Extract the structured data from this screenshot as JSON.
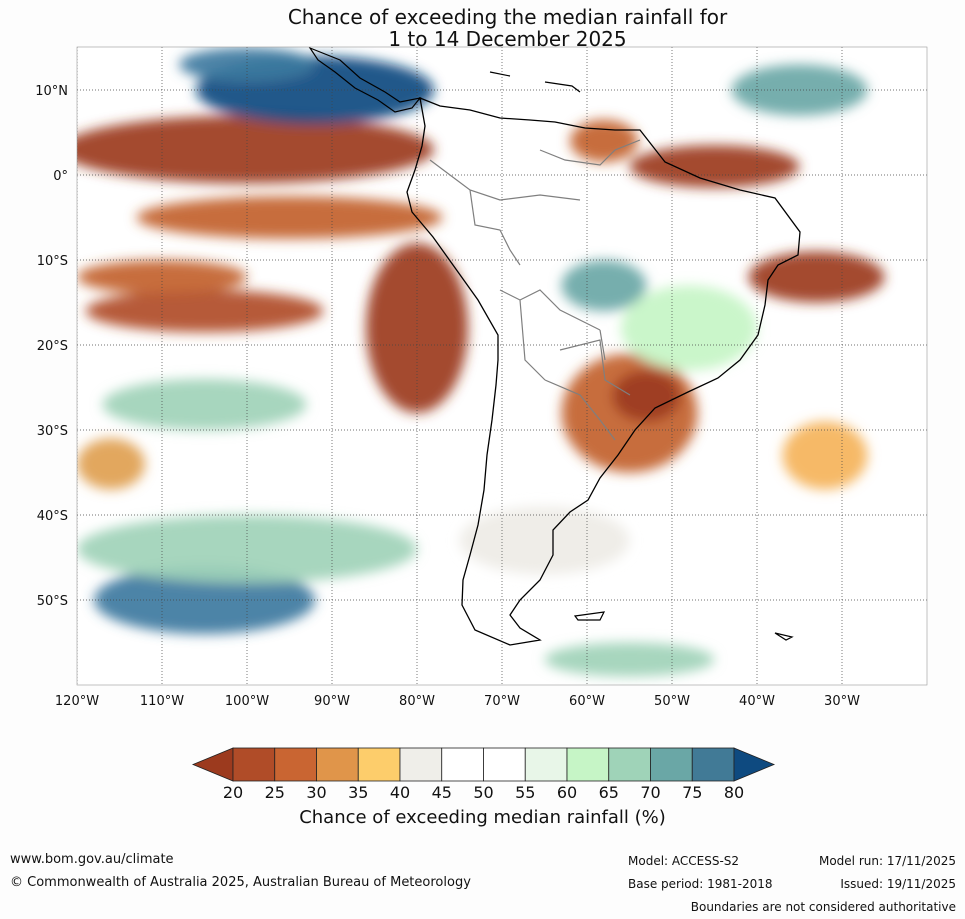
{
  "title": {
    "line1": "Chance of exceeding the median rainfall for",
    "line2": "1 to 14 December 2025"
  },
  "map": {
    "lat_labels": [
      {
        "lat": 10,
        "label": "10°N"
      },
      {
        "lat": 0,
        "label": "0°"
      },
      {
        "lat": -10,
        "label": "10°S"
      },
      {
        "lat": -20,
        "label": "20°S"
      },
      {
        "lat": -30,
        "label": "30°S"
      },
      {
        "lat": -40,
        "label": "40°S"
      },
      {
        "lat": -50,
        "label": "50°S"
      }
    ],
    "lon_labels": [
      {
        "lon": -120,
        "label": "120°W"
      },
      {
        "lon": -110,
        "label": "110°W"
      },
      {
        "lon": -100,
        "label": "100°W"
      },
      {
        "lon": -90,
        "label": "90°W"
      },
      {
        "lon": -80,
        "label": "80°W"
      },
      {
        "lon": -70,
        "label": "70°W"
      },
      {
        "lon": -60,
        "label": "60°W"
      },
      {
        "lon": -50,
        "label": "50°W"
      },
      {
        "lon": -40,
        "label": "40°W"
      },
      {
        "lon": -30,
        "label": "30°W"
      }
    ],
    "regions": [
      {
        "name": "dry-eastern-pacific-equatorial",
        "lon": -100,
        "lat": 3,
        "rx": 22,
        "ry": 4,
        "color": "#9c3a1e"
      },
      {
        "name": "dry-pacific-band-south",
        "lon": -95,
        "lat": -5,
        "rx": 18,
        "ry": 2.5,
        "color": "#c2622e"
      },
      {
        "name": "dry-peru-coast",
        "lon": -80,
        "lat": -18,
        "rx": 6,
        "ry": 10,
        "color": "#9c3a1e"
      },
      {
        "name": "dry-pacific-16s",
        "lon": -105,
        "lat": -16,
        "rx": 14,
        "ry": 2.5,
        "color": "#b04c28"
      },
      {
        "name": "dry-pacific-12s",
        "lon": -110,
        "lat": -12,
        "rx": 10,
        "ry": 2,
        "color": "#c2622e"
      },
      {
        "name": "dry-southern-brazil",
        "lon": -55,
        "lat": -28,
        "rx": 8,
        "ry": 7,
        "color": "#c2622e"
      },
      {
        "name": "dry-southern-brazil-core",
        "lon": -53,
        "lat": -26,
        "rx": 4,
        "ry": 3,
        "color": "#9c3a1e"
      },
      {
        "name": "dry-atlantic-equatorial",
        "lon": -45,
        "lat": 1,
        "rx": 10,
        "ry": 2.5,
        "color": "#9c3a1e"
      },
      {
        "name": "dry-atlantic-12s",
        "lon": -33,
        "lat": -12,
        "rx": 8,
        "ry": 3,
        "color": "#9c3a1e"
      },
      {
        "name": "dry-atlantic-30s",
        "lon": -32,
        "lat": -33,
        "rx": 5,
        "ry": 4,
        "color": "#f5b35a"
      },
      {
        "name": "dry-pacific-32s",
        "lon": -116,
        "lat": -34,
        "rx": 4,
        "ry": 3,
        "color": "#e0a050"
      },
      {
        "name": "dry-north-colombia",
        "lon": -58,
        "lat": 4,
        "rx": 4,
        "ry": 2.5,
        "color": "#c2622e"
      },
      {
        "name": "wet-central-america",
        "lon": -92,
        "lat": 10,
        "rx": 14,
        "ry": 4,
        "color": "#0e4a80"
      },
      {
        "name": "wet-pacific-12n",
        "lon": -100,
        "lat": 13,
        "rx": 8,
        "ry": 2,
        "color": "#3d79a0"
      },
      {
        "name": "wet-southern-pacific",
        "lon": -105,
        "lat": -50,
        "rx": 13,
        "ry": 4,
        "color": "#3d79a0"
      },
      {
        "name": "wet-southern-pacific-light",
        "lon": -100,
        "lat": -44,
        "rx": 20,
        "ry": 4,
        "color": "#9fd3b8"
      },
      {
        "name": "wet-amazon-center",
        "lon": -58,
        "lat": -13,
        "rx": 5,
        "ry": 3,
        "color": "#6aa7a6"
      },
      {
        "name": "wet-brazil-interior",
        "lon": -48,
        "lat": -18,
        "rx": 8,
        "ry": 5,
        "color": "#c6f5c6"
      },
      {
        "name": "wet-atlantic-north",
        "lon": -35,
        "lat": 10,
        "rx": 8,
        "ry": 3,
        "color": "#6aa7a6"
      },
      {
        "name": "wet-pacific-25s",
        "lon": -105,
        "lat": -27,
        "rx": 12,
        "ry": 3,
        "color": "#9fd3b8"
      },
      {
        "name": "neutral-patagonia",
        "lon": -65,
        "lat": -43,
        "rx": 10,
        "ry": 4,
        "color": "#eeebe6"
      },
      {
        "name": "wet-drake",
        "lon": -55,
        "lat": -57,
        "rx": 10,
        "ry": 2,
        "color": "#9fd3b8"
      }
    ]
  },
  "colorbar": {
    "colors": [
      "#9c3a1e",
      "#b04c28",
      "#c96532",
      "#e0954a",
      "#fdcd6b",
      "#efeee9",
      "#ffffff",
      "#ffffff",
      "#e8f6e8",
      "#c6f5c6",
      "#9fd3b8",
      "#6aa7a6",
      "#417a96",
      "#0e4a80"
    ],
    "ticks": [
      "20",
      "25",
      "30",
      "35",
      "40",
      "45",
      "50",
      "55",
      "60",
      "65",
      "70",
      "75",
      "80"
    ],
    "label": "Chance of exceeding median rainfall (%)"
  },
  "footer": {
    "url": "www.bom.gov.au/climate",
    "copyright": "© Commonwealth of Australia 2025, Australian Bureau of Meteorology",
    "model": "Model: ACCESS-S2",
    "base_period": "Base period: 1981-2018",
    "model_run": "Model run: 17/11/2025",
    "issued": "Issued: 19/11/2025",
    "disclaimer": "Boundaries are not considered authoritative"
  }
}
